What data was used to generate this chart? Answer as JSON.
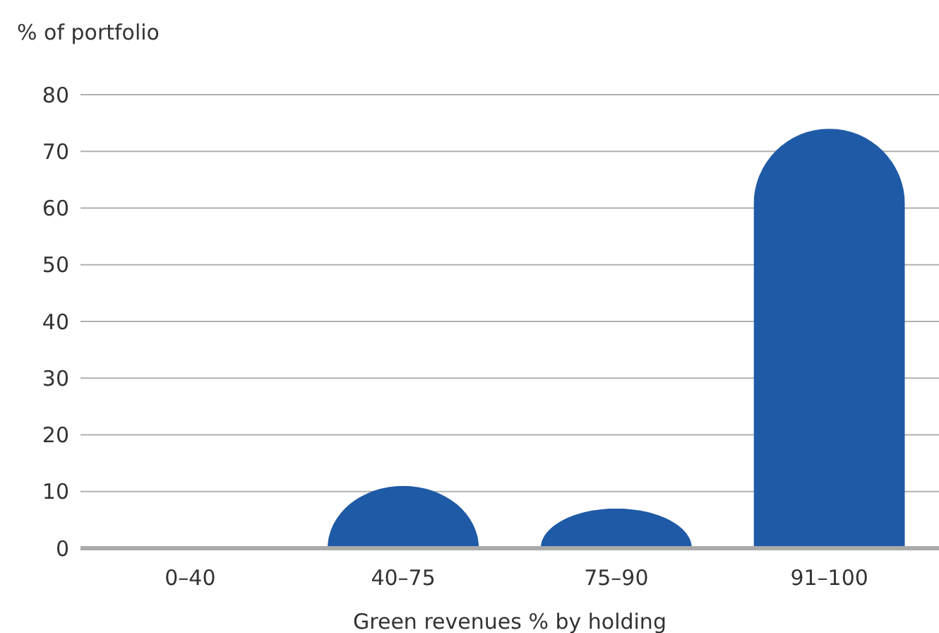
{
  "chart_data": {
    "type": "bar",
    "ylabel": "% of portfolio",
    "xlabel": "Green revenues % by holding",
    "categories": [
      "0–40",
      "40–75",
      "75–90",
      "91–100"
    ],
    "values": [
      0,
      11,
      7,
      74
    ],
    "color": "#1f5aa6",
    "ylim": [
      0,
      80
    ],
    "yticks": [
      0,
      10,
      20,
      30,
      40,
      50,
      60,
      70,
      80
    ],
    "grid": "y"
  }
}
